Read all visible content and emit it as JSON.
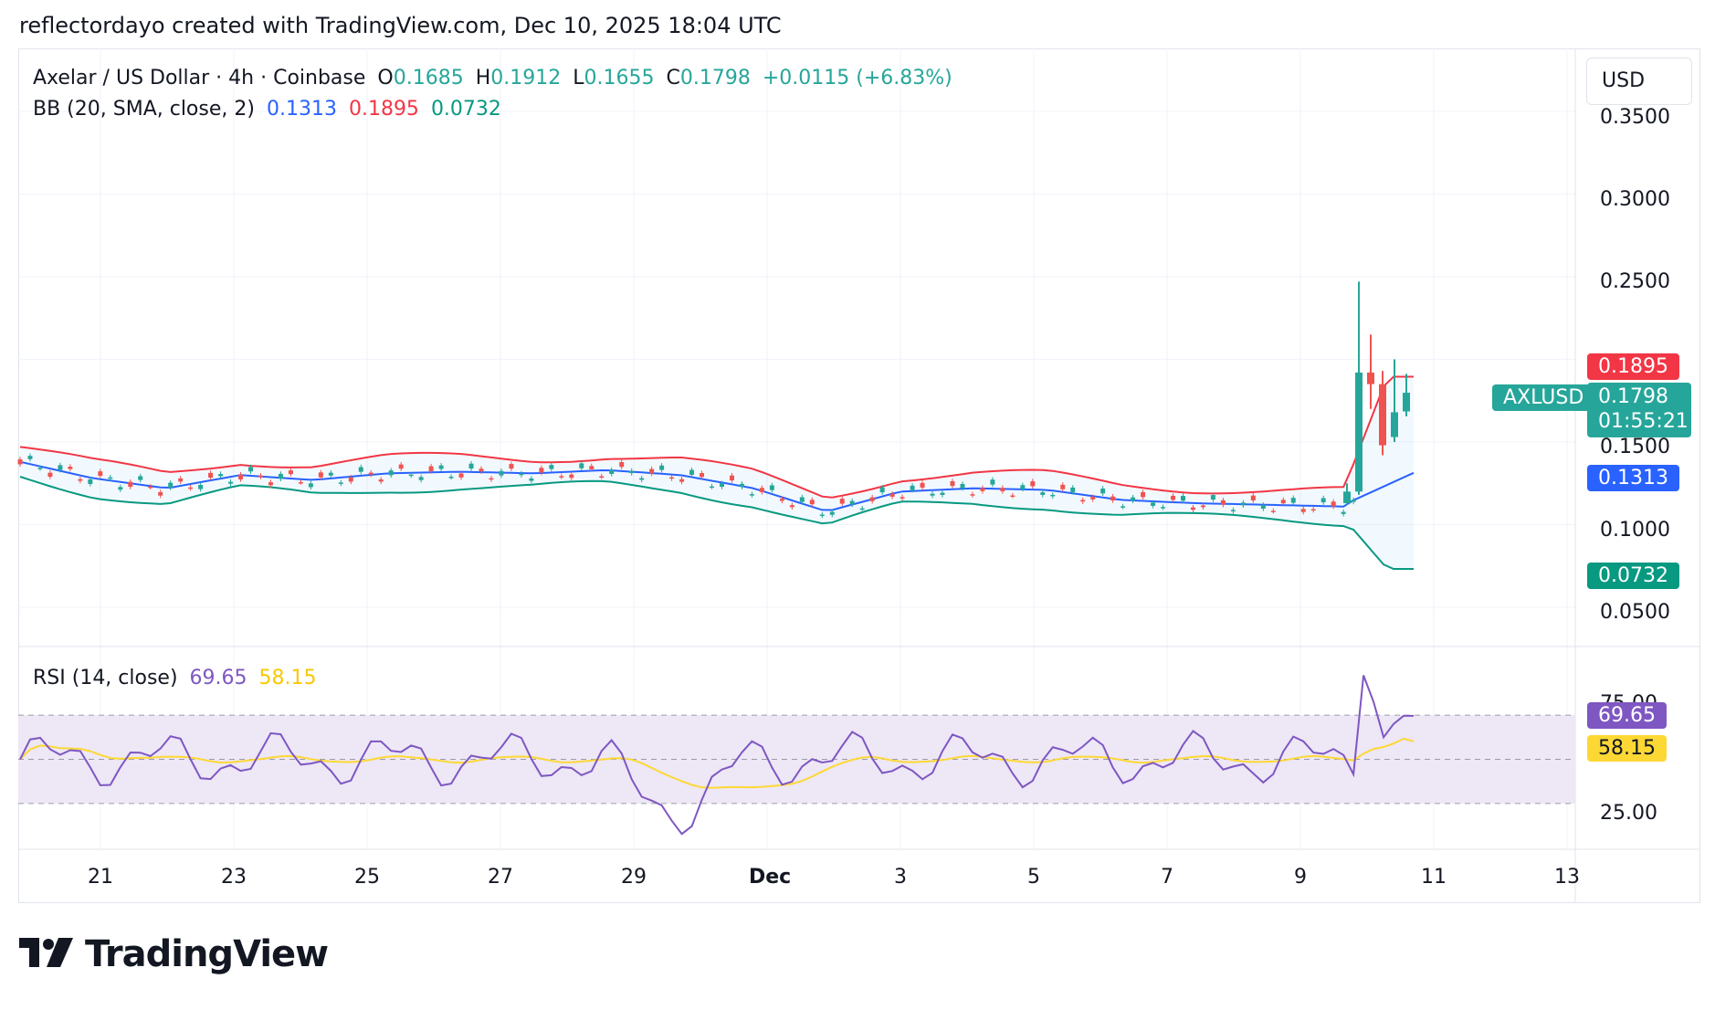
{
  "header": {
    "attribution": "reflectordayo created with TradingView.com, Dec 10, 2025 18:04 UTC"
  },
  "legend": {
    "symbol": "Axelar / US Dollar · 4h · Coinbase",
    "o_label": "O",
    "o_value": "0.1685",
    "h_label": "H",
    "h_value": "0.1912",
    "l_label": "L",
    "l_value": "0.1655",
    "c_label": "C",
    "c_value": "0.1798",
    "change": "+0.0115 (+6.83%)",
    "bb_label": "BB (20, SMA, close, 2)",
    "bb_basis": "0.1313",
    "bb_upper": "0.1895",
    "bb_lower": "0.0732",
    "rsi_label": "RSI (14, close)",
    "rsi_value": "69.65",
    "rsi_ma": "58.15"
  },
  "currency_button": "USD",
  "price_labels": {
    "bb_upper": "0.1895",
    "last_price": "0.1798",
    "countdown": "01:55:21",
    "symbol_tag": "AXLUSD",
    "bb_basis": "0.1313",
    "bb_lower": "0.0732",
    "rsi": "69.65",
    "rsi_ma": "58.15"
  },
  "price_axis_ticks": [
    "0.3500",
    "0.3000",
    "0.2500",
    "0.1500",
    "0.1000",
    "0.0500"
  ],
  "rsi_axis_ticks": [
    "75.00",
    "25.00"
  ],
  "time_axis_ticks": [
    "21",
    "23",
    "25",
    "27",
    "29",
    "Dec",
    "3",
    "5",
    "7",
    "9",
    "11",
    "13"
  ],
  "logo_text": "TradingView",
  "colors": {
    "up": "#26a69a",
    "down": "#ef5350",
    "bb_basis": "#2962ff",
    "bb_upper": "#f23645",
    "bb_lower": "#089981",
    "rsi": "#7e57c2",
    "rsi_ma": "#fdd835",
    "rsi_band": "#ede7f6"
  },
  "chart_data": [
    {
      "type": "candlestick",
      "title": "Axelar / US Dollar · 4h · Coinbase",
      "x_dates": [
        "Nov 20",
        "Nov 21",
        "Nov 22",
        "Nov 23",
        "Nov 24",
        "Nov 25",
        "Nov 26",
        "Nov 27",
        "Nov 28",
        "Nov 29",
        "Nov 30",
        "Dec 1",
        "Dec 2",
        "Dec 3",
        "Dec 4",
        "Dec 5",
        "Dec 6",
        "Dec 7",
        "Dec 8",
        "Dec 9",
        "Dec 10"
      ],
      "approx_close": [
        0.138,
        0.128,
        0.122,
        0.13,
        0.127,
        0.131,
        0.132,
        0.131,
        0.133,
        0.13,
        0.122,
        0.108,
        0.12,
        0.122,
        0.121,
        0.115,
        0.113,
        0.112,
        0.111,
        0.11,
        0.1798
      ],
      "last_bars_ohlc": [
        {
          "o": 0.113,
          "h": 0.125,
          "l": 0.112,
          "c": 0.12
        },
        {
          "o": 0.12,
          "h": 0.247,
          "l": 0.118,
          "c": 0.192
        },
        {
          "o": 0.192,
          "h": 0.215,
          "l": 0.17,
          "c": 0.185
        },
        {
          "o": 0.185,
          "h": 0.193,
          "l": 0.142,
          "c": 0.148
        },
        {
          "o": 0.153,
          "h": 0.2,
          "l": 0.15,
          "c": 0.168
        },
        {
          "o": 0.1685,
          "h": 0.1912,
          "l": 0.1655,
          "c": 0.1798
        }
      ],
      "bollinger": {
        "basis": 0.1313,
        "upper": 0.1895,
        "lower": 0.0732
      },
      "ylim": [
        0.03,
        0.37
      ]
    },
    {
      "type": "line",
      "title": "RSI (14, close)",
      "series": [
        {
          "name": "RSI",
          "last": 69.65
        },
        {
          "name": "RSI MA",
          "last": 58.15
        }
      ],
      "bands": [
        30,
        50,
        70
      ],
      "ylim": [
        0,
        100
      ]
    }
  ]
}
